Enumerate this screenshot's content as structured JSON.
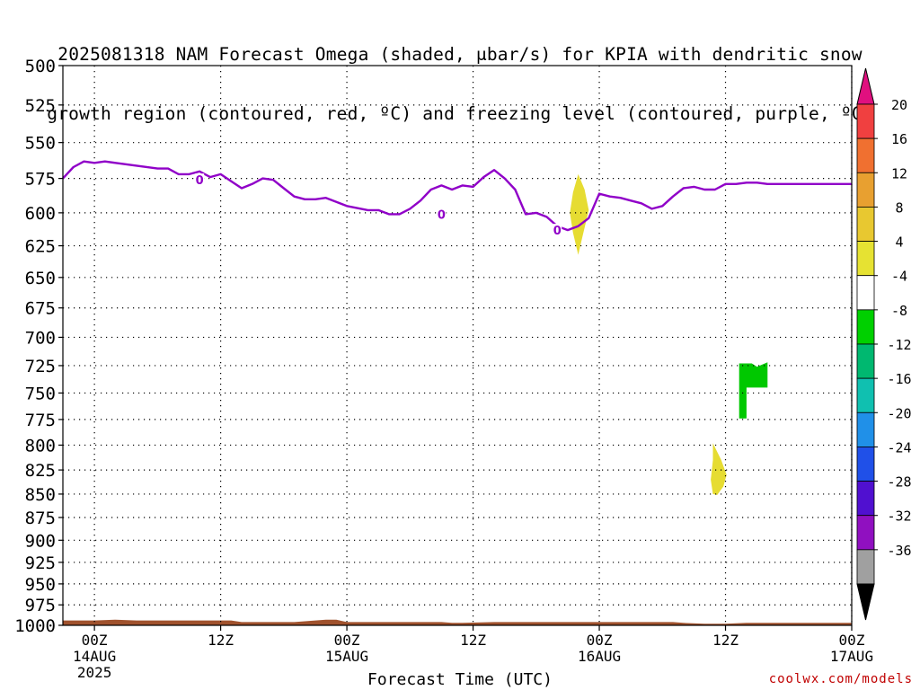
{
  "title": {
    "line1": "2025081318 NAM Forecast Omega (shaded, μbar/s) for KPIA with dendritic snow",
    "line2": "growth region (contoured, red, ºC) and freezing level (contoured, purple, ºC)"
  },
  "credit": "coolwx.com/models",
  "chart_data": {
    "type": "heatmap",
    "xlabel": "Forecast Time (UTC)",
    "ylabel": "",
    "y_scale": "log-pressure",
    "ylim": [
      1000,
      500
    ],
    "y_ticks": [
      500,
      525,
      550,
      575,
      600,
      625,
      650,
      675,
      700,
      725,
      750,
      775,
      800,
      825,
      850,
      875,
      900,
      925,
      950,
      975,
      1000
    ],
    "y_tick_labels": [
      "500",
      "525",
      "550",
      "575",
      "600",
      "625",
      "650",
      "675",
      "700",
      "725",
      "750",
      "775",
      "800",
      "825",
      "850",
      "875",
      "900",
      "925",
      "950",
      "975",
      "1000"
    ],
    "xlim": [
      -3,
      72
    ],
    "x_ticks": [
      {
        "x": 0,
        "label": "00Z",
        "sub": "14AUG",
        "sub2": "2025"
      },
      {
        "x": 12,
        "label": "12Z",
        "sub": "",
        "sub2": ""
      },
      {
        "x": 24,
        "label": "00Z",
        "sub": "15AUG",
        "sub2": ""
      },
      {
        "x": 36,
        "label": "12Z",
        "sub": "",
        "sub2": ""
      },
      {
        "x": 48,
        "label": "00Z",
        "sub": "16AUG",
        "sub2": ""
      },
      {
        "x": 60,
        "label": "12Z",
        "sub": "",
        "sub2": ""
      },
      {
        "x": 72,
        "label": "00Z",
        "sub": "17AUG",
        "sub2": ""
      }
    ],
    "grid": "dotted",
    "freezing_level": {
      "color": "#9000c8",
      "contour_label": "0",
      "points": [
        [
          -3,
          575
        ],
        [
          -2,
          567
        ],
        [
          -1,
          563
        ],
        [
          0,
          564
        ],
        [
          1,
          563
        ],
        [
          2,
          564
        ],
        [
          4,
          566
        ],
        [
          6,
          568
        ],
        [
          7,
          568
        ],
        [
          8,
          572
        ],
        [
          9,
          572
        ],
        [
          10,
          570
        ],
        [
          11,
          574
        ],
        [
          12,
          572
        ],
        [
          13,
          577
        ],
        [
          14,
          582
        ],
        [
          15,
          579
        ],
        [
          16,
          575
        ],
        [
          17,
          576
        ],
        [
          18,
          582
        ],
        [
          19,
          588
        ],
        [
          20,
          590
        ],
        [
          21,
          590
        ],
        [
          22,
          589
        ],
        [
          23,
          592
        ],
        [
          24,
          595
        ],
        [
          26,
          598
        ],
        [
          27,
          598
        ],
        [
          28,
          601
        ],
        [
          29,
          601
        ],
        [
          30,
          597
        ],
        [
          31,
          591
        ],
        [
          32,
          583
        ],
        [
          33,
          580
        ],
        [
          34,
          583
        ],
        [
          35,
          580
        ],
        [
          36,
          581
        ],
        [
          37,
          574
        ],
        [
          38,
          569
        ],
        [
          39,
          575
        ],
        [
          40,
          583
        ],
        [
          41,
          601
        ],
        [
          42,
          600
        ],
        [
          43,
          603
        ],
        [
          44,
          610
        ],
        [
          45,
          613
        ],
        [
          46,
          610
        ],
        [
          47,
          604
        ],
        [
          48,
          586
        ],
        [
          49,
          588
        ],
        [
          50,
          589
        ],
        [
          51,
          591
        ],
        [
          52,
          593
        ],
        [
          53,
          597
        ],
        [
          54,
          595
        ],
        [
          55,
          588
        ],
        [
          56,
          582
        ],
        [
          57,
          581
        ],
        [
          58,
          583
        ],
        [
          59,
          583
        ],
        [
          60,
          579
        ],
        [
          61,
          579
        ],
        [
          62,
          578
        ],
        [
          63,
          578
        ],
        [
          64,
          579
        ],
        [
          72,
          579
        ]
      ],
      "label_positions": [
        [
          10,
          576
        ],
        [
          33,
          601
        ],
        [
          44,
          613
        ]
      ]
    },
    "terrain": {
      "color": "#a0522d",
      "surface_pressure": [
        [
          -3,
          994
        ],
        [
          0,
          994
        ],
        [
          2,
          993
        ],
        [
          4,
          994
        ],
        [
          13,
          994
        ],
        [
          14,
          996
        ],
        [
          19,
          996
        ],
        [
          22,
          993
        ],
        [
          23,
          993
        ],
        [
          24,
          996
        ],
        [
          29,
          996
        ],
        [
          33,
          996
        ],
        [
          34,
          997
        ],
        [
          35,
          997
        ],
        [
          38,
          996
        ],
        [
          55,
          996
        ],
        [
          56,
          997
        ],
        [
          58,
          998
        ],
        [
          60,
          998
        ],
        [
          62,
          997
        ],
        [
          64,
          997
        ],
        [
          72,
          997
        ]
      ]
    },
    "omega_regions": [
      {
        "value_range": [
          4,
          8
        ],
        "color": "#e6dc32",
        "points": [
          [
            46,
            572
          ],
          [
            46.6,
            583
          ],
          [
            47,
            598
          ],
          [
            46.4,
            618
          ],
          [
            46,
            632
          ],
          [
            45.5,
            615
          ],
          [
            45.2,
            600
          ],
          [
            45.5,
            585
          ]
        ]
      },
      {
        "value_range": [
          4,
          8
        ],
        "color": "#e6dc32",
        "points": [
          [
            58.8,
            798
          ],
          [
            59.6,
            815
          ],
          [
            60.1,
            830
          ],
          [
            59.8,
            842
          ],
          [
            59.2,
            851
          ],
          [
            58.8,
            850
          ],
          [
            58.6,
            835
          ],
          [
            58.8,
            815
          ]
        ]
      },
      {
        "value_range": [
          -8,
          -4
        ],
        "color": "#00c800",
        "points": [
          [
            61.3,
            723
          ],
          [
            62.5,
            723
          ],
          [
            63,
            726
          ],
          [
            64,
            722
          ],
          [
            64,
            745
          ],
          [
            62,
            745
          ],
          [
            62,
            774
          ],
          [
            61.3,
            774
          ]
        ]
      }
    ],
    "colorbar": {
      "labels": [
        "20",
        "16",
        "12",
        "8",
        "4",
        "-4",
        "-8",
        "-12",
        "-16",
        "-20",
        "-24",
        "-28",
        "-32",
        "-36"
      ],
      "colors": [
        "#f04040",
        "#f07030",
        "#e8a030",
        "#e8c830",
        "#e6e232",
        "#ffffff",
        "#00d000",
        "#00b870",
        "#10c0b0",
        "#2090e8",
        "#2050e8",
        "#5010d0",
        "#9010c0",
        "#a0a0a0"
      ],
      "top_arrow": "#e0107f",
      "bottom_arrow": "#000000"
    }
  }
}
